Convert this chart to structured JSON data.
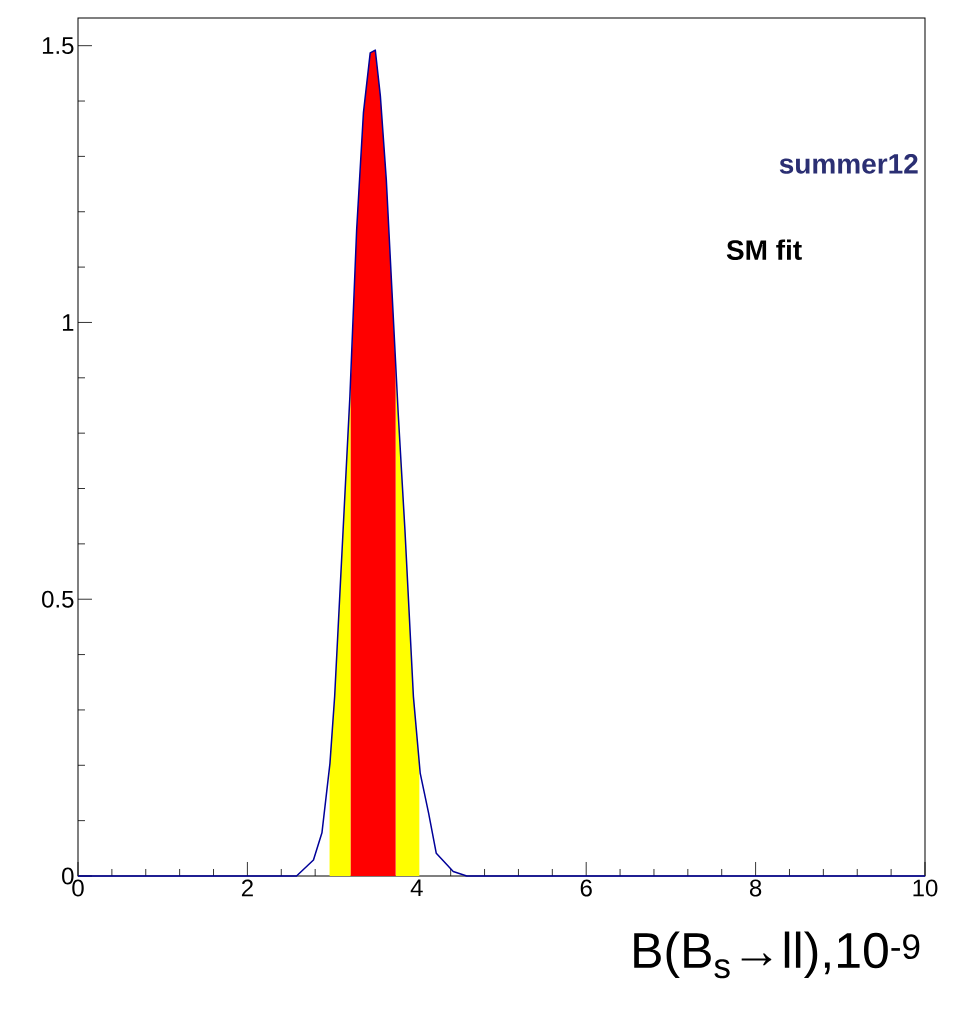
{
  "chart_data": {
    "type": "line",
    "xlabel": "B(B$_{s}$→ll),10$^{-9}$",
    "xlim": [
      0,
      10
    ],
    "ylim": [
      0,
      1.55
    ],
    "xticks": [
      0,
      2,
      4,
      6,
      8,
      10
    ],
    "yticks": [
      0,
      0.5,
      1,
      1.5
    ],
    "annotations": [
      "summer12",
      "SM fit"
    ],
    "series": [
      {
        "type": "area",
        "color": "#ffff00",
        "x": [
          2.97,
          3.03,
          3.13,
          3.21,
          3.22,
          3.5,
          3.75,
          3.78,
          3.86,
          3.96,
          4.03
        ],
        "values": [
          0.2,
          0.324,
          0.625,
          0.866,
          0.89,
          null,
          0.92,
          0.837,
          0.625,
          0.324,
          0.2
        ]
      },
      {
        "type": "area",
        "color": "#ff0000",
        "x": [
          3.22,
          3.29,
          3.37,
          3.45,
          3.51,
          3.57,
          3.64,
          3.72,
          3.75
        ],
        "values": [
          0.89,
          1.168,
          1.379,
          1.487,
          1.492,
          1.409,
          1.258,
          1.017,
          0.92
        ]
      },
      {
        "color": "#000099",
        "x": [
          0,
          2.58,
          2.78,
          2.88,
          2.975,
          3.03,
          3.13,
          3.21,
          3.29,
          3.37,
          3.45,
          3.51,
          3.57,
          3.64,
          3.72,
          3.78,
          3.86,
          3.96,
          4.04,
          4.14,
          4.23,
          4.43,
          4.59,
          10
        ],
        "values": [
          0,
          0,
          0.029,
          0.078,
          0.204,
          0.324,
          0.625,
          0.866,
          1.168,
          1.379,
          1.487,
          1.492,
          1.409,
          1.258,
          1.017,
          0.837,
          0.625,
          0.324,
          0.186,
          0.113,
          0.041,
          0.008,
          0,
          0
        ]
      }
    ]
  }
}
